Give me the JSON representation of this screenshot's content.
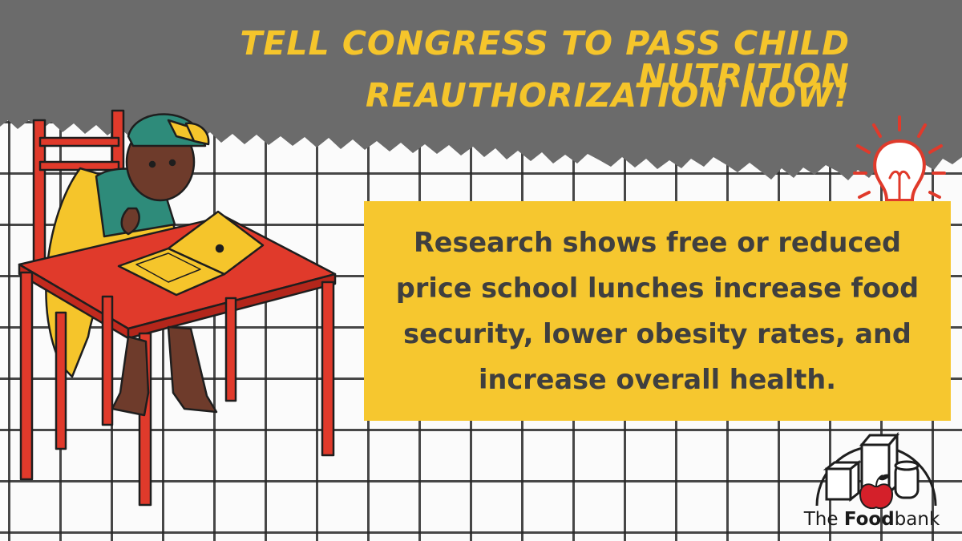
{
  "headline": {
    "line1": "TELL CONGRESS TO PASS CHILD NUTRITION",
    "line2": "REAUTHORIZATION NOW!"
  },
  "research": {
    "text": "Research shows free or reduced price school lunches increase food security, lower obesity rates, and increase overall health."
  },
  "logo": {
    "prefix": "The",
    "bold": "Food",
    "suffix": "bank"
  },
  "colors": {
    "header_gray": "#6b6b6b",
    "accent_yellow": "#f5c52b",
    "box_yellow": "#f6c72f",
    "text_dark": "#3f3f3f",
    "table_red": "#e03a2b"
  },
  "icons": [
    "lightbulb-icon",
    "foodbank-logo"
  ]
}
